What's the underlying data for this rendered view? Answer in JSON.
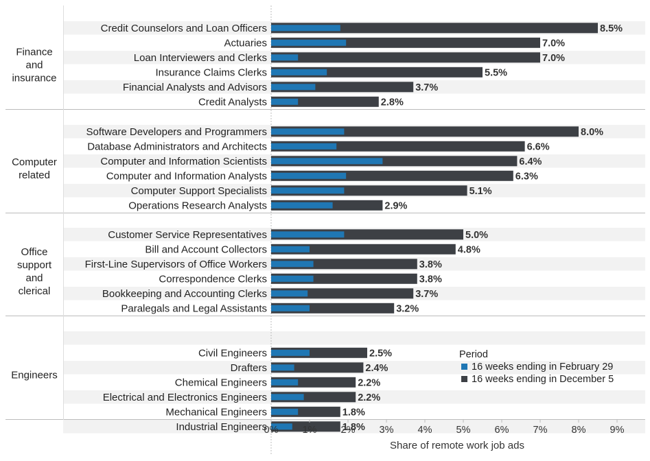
{
  "chart_data": {
    "type": "bar",
    "orientation": "horizontal",
    "xlabel": "Share of remote work job ads",
    "xlim": [
      0,
      9.5
    ],
    "xticks": [
      "0%",
      "1%",
      "2%",
      "3%",
      "4%",
      "5%",
      "6%",
      "7%",
      "8%",
      "9%"
    ],
    "legend": {
      "title": "Period",
      "placement": "bottom-right",
      "entries": [
        {
          "name": "16 weeks ending in February 29",
          "color": "#1f77b4"
        },
        {
          "name": "16 weeks ending in December 5",
          "color": "#3d4045"
        }
      ]
    },
    "colors": {
      "feb": "#1f77b4",
      "dec": "#3d4045",
      "band": "#f2f2f2"
    },
    "groups": [
      {
        "name": [
          "Finance",
          "and",
          "insurance"
        ],
        "items": [
          {
            "label": "Credit Counselors and Loan Officers",
            "feb": 1.8,
            "dec": 8.5,
            "dec_label": "8.5%"
          },
          {
            "label": "Actuaries",
            "feb": 1.95,
            "dec": 7.0,
            "dec_label": "7.0%"
          },
          {
            "label": "Loan Interviewers and Clerks",
            "feb": 0.7,
            "dec": 7.0,
            "dec_label": "7.0%"
          },
          {
            "label": "Insurance Claims Clerks",
            "feb": 1.45,
            "dec": 5.5,
            "dec_label": "5.5%"
          },
          {
            "label": "Financial Analysts and Advisors",
            "feb": 1.15,
            "dec": 3.7,
            "dec_label": "3.7%"
          },
          {
            "label": "Credit Analysts",
            "feb": 0.7,
            "dec": 2.8,
            "dec_label": "2.8%"
          }
        ]
      },
      {
        "name": [
          "Computer",
          "related"
        ],
        "items": [
          {
            "label": "Software Developers and Programmers",
            "feb": 1.9,
            "dec": 8.0,
            "dec_label": "8.0%"
          },
          {
            "label": "Database Administrators and Architects",
            "feb": 1.7,
            "dec": 6.6,
            "dec_label": "6.6%"
          },
          {
            "label": "Computer and Information Scientists",
            "feb": 2.9,
            "dec": 6.4,
            "dec_label": "6.4%"
          },
          {
            "label": "Computer and Information Analysts",
            "feb": 1.95,
            "dec": 6.3,
            "dec_label": "6.3%"
          },
          {
            "label": "Computer Support Specialists",
            "feb": 1.9,
            "dec": 5.1,
            "dec_label": "5.1%"
          },
          {
            "label": "Operations Research Analysts",
            "feb": 1.6,
            "dec": 2.9,
            "dec_label": "2.9%"
          }
        ]
      },
      {
        "name": [
          "Office",
          "support",
          "and",
          "clerical"
        ],
        "items": [
          {
            "label": "Customer Service Representatives",
            "feb": 1.9,
            "dec": 5.0,
            "dec_label": "5.0%"
          },
          {
            "label": "Bill and Account Collectors",
            "feb": 1.0,
            "dec": 4.8,
            "dec_label": "4.8%"
          },
          {
            "label": "First-Line Supervisors of Office Workers",
            "feb": 1.1,
            "dec": 3.8,
            "dec_label": "3.8%"
          },
          {
            "label": "Correspondence Clerks",
            "feb": 1.1,
            "dec": 3.8,
            "dec_label": "3.8%"
          },
          {
            "label": "Bookkeeping and Accounting Clerks",
            "feb": 0.95,
            "dec": 3.7,
            "dec_label": "3.7%"
          },
          {
            "label": "Paralegals and Legal Assistants",
            "feb": 1.0,
            "dec": 3.2,
            "dec_label": "3.2%"
          }
        ]
      },
      {
        "name": [
          "Engineers"
        ],
        "items": [
          {
            "label": "",
            "feb": null,
            "dec": null,
            "dec_label": ""
          },
          {
            "label": "Civil Engineers",
            "feb": 1.0,
            "dec": 2.5,
            "dec_label": "2.5%"
          },
          {
            "label": "Drafters",
            "feb": 0.6,
            "dec": 2.4,
            "dec_label": "2.4%"
          },
          {
            "label": "Chemical Engineers",
            "feb": 0.7,
            "dec": 2.2,
            "dec_label": "2.2%"
          },
          {
            "label": "Electrical and Electronics Engineers",
            "feb": 0.85,
            "dec": 2.2,
            "dec_label": "2.2%"
          },
          {
            "label": "Mechanical Engineers",
            "feb": 0.7,
            "dec": 1.8,
            "dec_label": "1.8%"
          },
          {
            "label": "Industrial Engineers",
            "feb": 0.55,
            "dec": 1.8,
            "dec_label": "1.8%"
          }
        ]
      }
    ]
  }
}
